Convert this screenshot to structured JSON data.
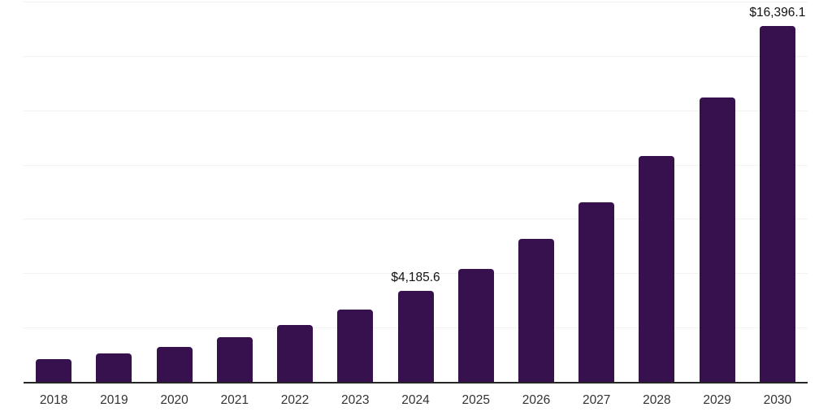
{
  "chart_data": {
    "type": "bar",
    "title": "",
    "xlabel": "",
    "ylabel": "",
    "categories": [
      "2018",
      "2019",
      "2020",
      "2021",
      "2022",
      "2023",
      "2024",
      "2025",
      "2026",
      "2027",
      "2028",
      "2029",
      "2030"
    ],
    "values": [
      1030,
      1300,
      1600,
      2060,
      2620,
      3330,
      4185.6,
      5210,
      6570,
      8260,
      10380,
      13080,
      16396.1
    ],
    "data_labels": [
      "",
      "",
      "",
      "",
      "",
      "",
      "$4,185.6",
      "",
      "",
      "",
      "",
      "",
      "$16,396.1"
    ],
    "ylim": [
      0,
      17500
    ],
    "gridline_step": 2500,
    "grid": "horizontal",
    "legend": "none",
    "y_axis_labels_visible": false,
    "colors": {
      "bar": "#36114D",
      "axis_line": "#262626",
      "gridline": "#f2f2f2",
      "data_label_text": "#111111",
      "tick_label_text": "#333333",
      "background": "#ffffff"
    }
  }
}
